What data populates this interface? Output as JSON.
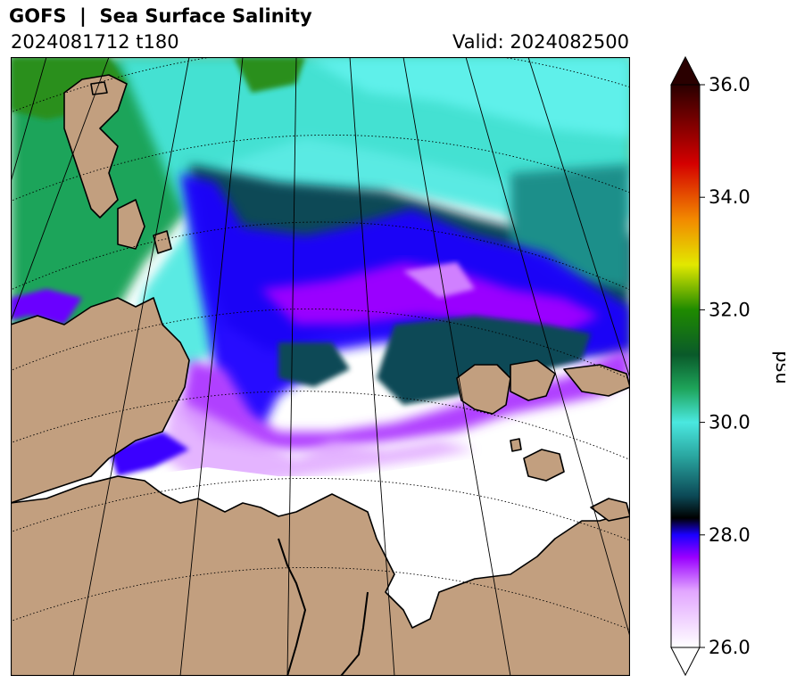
{
  "header": {
    "title": "GOFS  |  Sea Surface Salinity",
    "run_label": "2024081712 t180",
    "valid_label": "Valid: 2024082500"
  },
  "colorbar": {
    "label": "psu",
    "min": 26.0,
    "max": 36.0,
    "ticks": [
      "26.0",
      "28.0",
      "30.0",
      "32.0",
      "34.0",
      "36.0"
    ],
    "extend": "both",
    "colors": {
      "land": "#c29f7f",
      "low_salinity": "#ffffff",
      "purple": "#9a00ff",
      "blue": "#1a00ff",
      "dark_teal": "#0c4a57",
      "cyan": "#4ae8e0",
      "green": "#1ea45a",
      "dark_green": "#1f8a00",
      "yellow": "#e2e800",
      "orange": "#f28a00",
      "red": "#d40000",
      "dark_red": "#2a0000"
    }
  },
  "map": {
    "projection": "polar stereographic",
    "gridlines": "dotted"
  }
}
